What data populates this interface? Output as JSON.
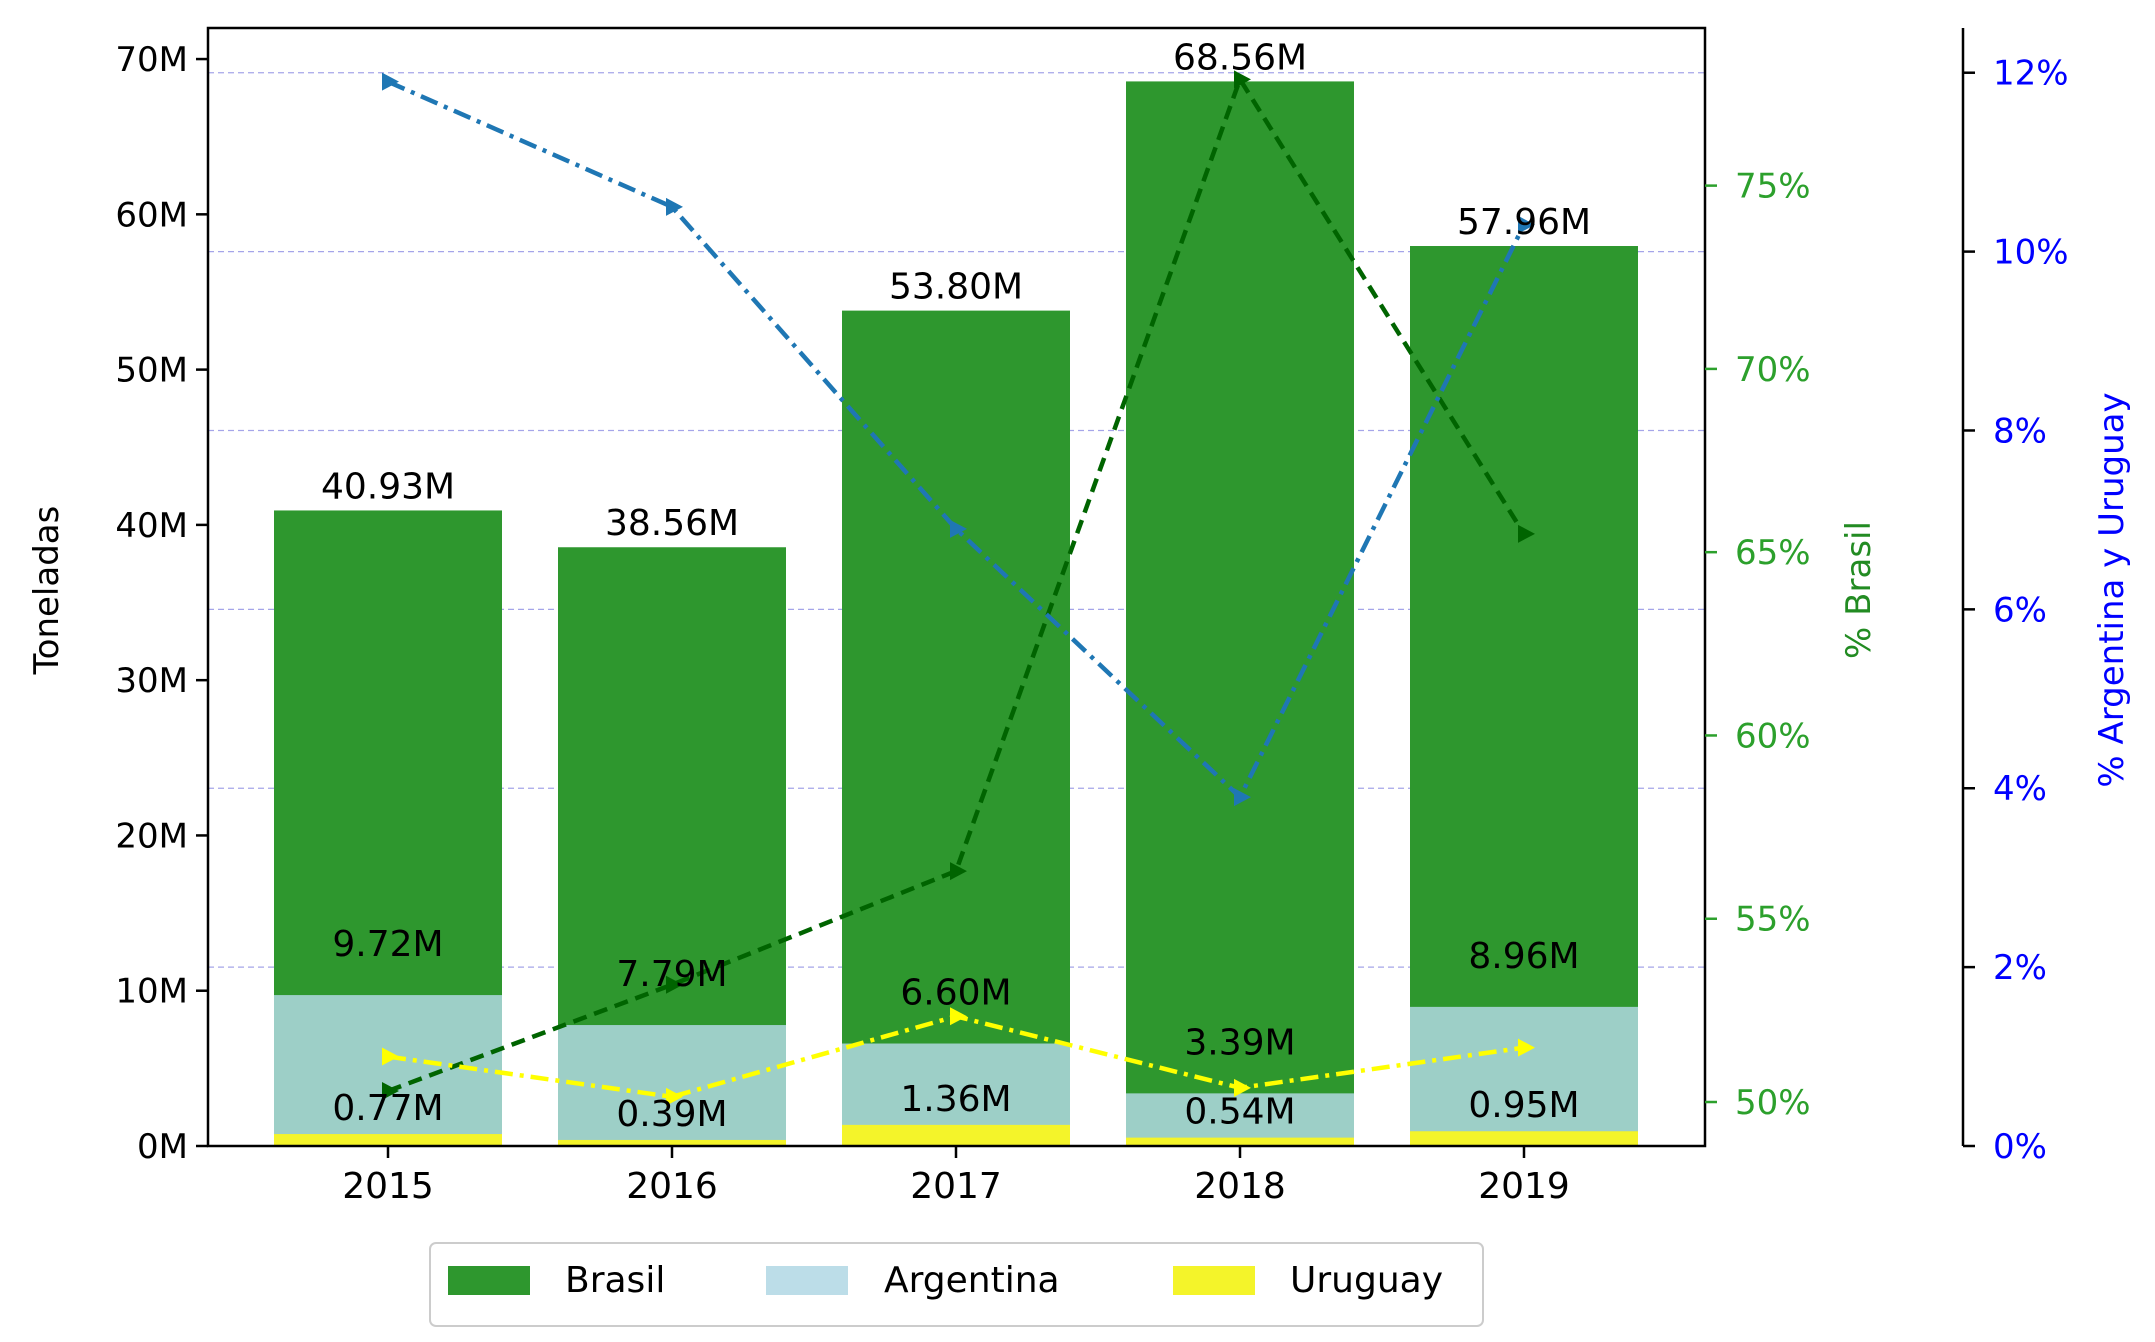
{
  "chart_data": {
    "type": "bar",
    "categories": [
      "2015",
      "2016",
      "2017",
      "2018",
      "2019"
    ],
    "ylabel": "Toneladas",
    "ylim": [
      0,
      72
    ],
    "yticks": [
      "0M",
      "10M",
      "20M",
      "30M",
      "40M",
      "50M",
      "60M",
      "70M"
    ],
    "ytick_values": [
      0,
      10,
      20,
      30,
      40,
      50,
      60,
      70
    ],
    "series": [
      {
        "name": "Brasil",
        "values": [
          40.93,
          38.56,
          53.8,
          68.56,
          57.96
        ],
        "labels": [
          "40.93M",
          "38.56M",
          "53.80M",
          "68.56M",
          "57.96M"
        ],
        "color": "#2e972e"
      },
      {
        "name": "Argentina",
        "values": [
          9.72,
          7.79,
          6.6,
          3.39,
          8.96
        ],
        "labels": [
          "9.72M",
          "7.79M",
          "6.60M",
          "3.39M",
          "8.96M"
        ],
        "color": "#9dcfc7"
      },
      {
        "name": "Uruguay",
        "values": [
          0.77,
          0.39,
          1.36,
          0.54,
          0.95
        ],
        "labels": [
          "0.77M",
          "0.39M",
          "1.36M",
          "0.54M",
          "0.95M"
        ],
        "color": "#f4f42a"
      }
    ],
    "axis_brasil_pct": {
      "label": "% Brasil",
      "ylim": [
        48.8,
        79.3
      ],
      "ticks": [
        "50%",
        "55%",
        "60%",
        "65%",
        "70%",
        "75%"
      ],
      "tick_values": [
        50,
        55,
        60,
        65,
        70,
        75
      ],
      "color": "#2ca02c",
      "label_color": "#228b22"
    },
    "axis_arg_uru_pct": {
      "label": "% Argentina y Uruguay",
      "ylim": [
        0,
        12.5
      ],
      "ticks": [
        "0%",
        "2%",
        "4%",
        "6%",
        "8%",
        "10%",
        "12%"
      ],
      "tick_values": [
        0,
        2,
        4,
        6,
        8,
        10,
        12
      ],
      "color": "#0000ff"
    },
    "pct_lines": [
      {
        "name": "% Brasil",
        "axis": "brasil",
        "values": [
          50.3,
          53.2,
          56.3,
          77.9,
          65.5
        ],
        "color": "#006400",
        "dash": "dashed"
      },
      {
        "name": "% Argentina",
        "axis": "arg_uru",
        "values": [
          11.9,
          10.5,
          6.9,
          3.9,
          10.3
        ],
        "color": "#1f77b4",
        "dash": "dashdot"
      },
      {
        "name": "% Uruguay",
        "axis": "arg_uru",
        "values": [
          1.0,
          0.55,
          1.45,
          0.65,
          1.1
        ],
        "color": "#ffff00",
        "dash": "dashdot"
      }
    ],
    "grid": "horizontal-dashed",
    "legend_position": "bottom-center",
    "legend": [
      {
        "name": "Brasil",
        "color": "#2e972e"
      },
      {
        "name": "Argentina",
        "color": "#bcdde8"
      },
      {
        "name": "Uruguay",
        "color": "#f4f42a"
      }
    ]
  }
}
